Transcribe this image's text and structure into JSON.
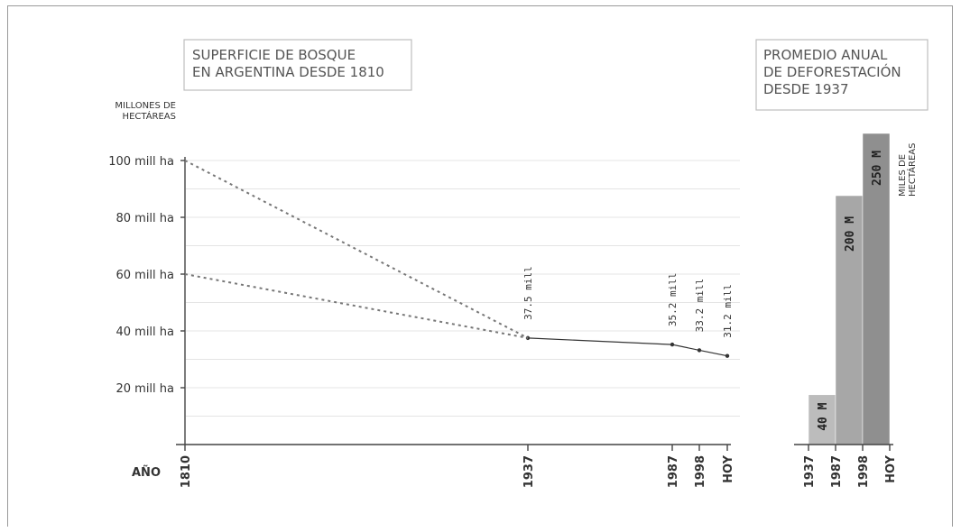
{
  "chart_data": [
    {
      "type": "line",
      "title": "SUPERFICIE DE BOSQUE\nEN ARGENTINA DESDE 1810",
      "ylabel": "MILLONES DE\nHECTÁREAS",
      "xlabel": "AÑO",
      "ylim": [
        0,
        100
      ],
      "yticks": [
        {
          "value": 20,
          "label": "20 mill ha"
        },
        {
          "value": 40,
          "label": "40 mill ha"
        },
        {
          "value": 60,
          "label": "60 mill ha"
        },
        {
          "value": 80,
          "label": "80 mill ha"
        },
        {
          "value": 100,
          "label": "100 mill ha"
        }
      ],
      "xticks": [
        "1810",
        "1937",
        "1987",
        "1998",
        "HOY"
      ],
      "grid": true,
      "series": [
        {
          "style": "solid",
          "points": [
            {
              "x": "1937",
              "y": 37.5,
              "label": "37.5 mill"
            },
            {
              "x": "1987",
              "y": 35.2,
              "label": "35.2 mill"
            },
            {
              "x": "1998",
              "y": 33.2,
              "label": "33.2 mill"
            },
            {
              "x": "HOY",
              "y": 31.2,
              "label": "31.2 mill"
            }
          ]
        },
        {
          "style": "dotted",
          "points": [
            {
              "x": "1810",
              "y": 100
            },
            {
              "x": "1937",
              "y": 37.5
            }
          ]
        },
        {
          "style": "dotted",
          "points": [
            {
              "x": "1810",
              "y": 60
            },
            {
              "x": "1937",
              "y": 37.5
            }
          ]
        }
      ]
    },
    {
      "type": "bar",
      "title": "PROMEDIO ANUAL\nDE DEFORESTACIÓN\nDESDE 1937",
      "ylabel": "MILES DE\nHECTÁREAS",
      "categories": [
        "1937-1987",
        "1987-1998",
        "1998-HOY"
      ],
      "tick_labels": [
        "1937",
        "1987",
        "1998",
        "HOY"
      ],
      "values": [
        40,
        200,
        250
      ],
      "value_labels": [
        "40 M",
        "200 M",
        "250 M"
      ],
      "colors": [
        "#bcbcbc",
        "#a7a7a7",
        "#8f8f8f"
      ],
      "ylim": [
        0,
        250
      ]
    }
  ]
}
